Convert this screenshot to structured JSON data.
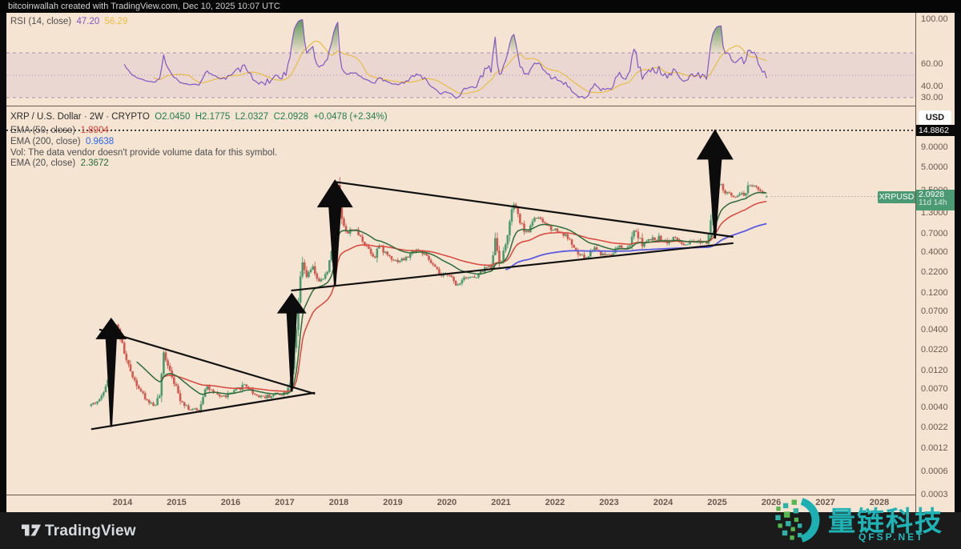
{
  "header": {
    "title": "bitcoinwallah created with TradingView.com, Dec 10, 2025 10:07 UTC"
  },
  "rsi": {
    "label": "RSI (14, close)",
    "value": "47.20",
    "ma_value": "56.29"
  },
  "legend": {
    "symbol_row": "XRP / U.S. Dollar · 2W · CRYPTO",
    "o": "O2.0450",
    "h": "H2.1775",
    "l": "L2.0327",
    "c": "C2.0928",
    "change": "+0.0478 (+2.34%)",
    "ema50_label": "EMA (50, close)",
    "ema50_value": "1.8904",
    "ema200_label": "EMA (200, close)",
    "ema200_value": "0.9638",
    "vol_note": "Vol: The data vendor doesn't provide volume data for this symbol.",
    "ema20_label": "EMA (20, close)",
    "ema20_value": "2.3672"
  },
  "axis": {
    "currency": "USD",
    "level_badge": "14.8862",
    "price_badge": "2.0928",
    "countdown": "11d 14h",
    "symbol_badge": "XRPUSD"
  },
  "footer": {
    "brand": "TradingView"
  },
  "watermark": {
    "name": "量链科技",
    "site": "QFSP.NET"
  },
  "chart_data": {
    "type": "candlestick",
    "title": "XRP / U.S. Dollar",
    "timeframe": "2W",
    "exchange": "CRYPTO",
    "log_scale": true,
    "seed": 42,
    "time_range": [
      2013.42,
      2025.94
    ],
    "last_ohlc": {
      "o": 2.045,
      "h": 2.1775,
      "l": 2.0327,
      "c": 2.0928,
      "change": 0.0478,
      "change_pct": 2.34
    },
    "indicators": {
      "rsi": {
        "period": 14,
        "value": 47.2,
        "ma_value": 56.29,
        "overbought": 70,
        "mid": 50,
        "oversold": 30,
        "line_color": "#7e57c2",
        "ma_color": "#e8bc45"
      },
      "ema20": {
        "period": 20,
        "value": 2.3672,
        "color": "#2e6b39"
      },
      "ema50": {
        "period": 50,
        "value": 1.8904,
        "color": "#d8453b"
      },
      "ema200": {
        "period": 200,
        "value": 0.9638,
        "color": "#5a5ae0"
      }
    },
    "horizontal_level": {
      "price": 14.8862,
      "style": "dotted"
    },
    "last_price": 2.0928,
    "candle_colors": {
      "up": "#4c9a6e",
      "down": "#cf5a50"
    },
    "price_anchors": [
      [
        2013.42,
        0.0042
      ],
      [
        2013.62,
        0.005
      ],
      [
        2013.79,
        0.0105
      ],
      [
        2013.9,
        0.055
      ],
      [
        2014.0,
        0.032
      ],
      [
        2014.12,
        0.015
      ],
      [
        2014.27,
        0.0088
      ],
      [
        2014.45,
        0.0052
      ],
      [
        2014.62,
        0.0042
      ],
      [
        2014.73,
        0.0058
      ],
      [
        2014.8,
        0.02
      ],
      [
        2014.92,
        0.012
      ],
      [
        2015.1,
        0.0052
      ],
      [
        2015.28,
        0.0038
      ],
      [
        2015.45,
        0.0036
      ],
      [
        2015.58,
        0.0078
      ],
      [
        2015.72,
        0.006
      ],
      [
        2015.9,
        0.0055
      ],
      [
        2016.1,
        0.0063
      ],
      [
        2016.3,
        0.008
      ],
      [
        2016.5,
        0.0058
      ],
      [
        2016.7,
        0.0055
      ],
      [
        2016.9,
        0.006
      ],
      [
        2017.05,
        0.0062
      ],
      [
        2017.15,
        0.009
      ],
      [
        2017.25,
        0.036
      ],
      [
        2017.35,
        0.3
      ],
      [
        2017.45,
        0.19
      ],
      [
        2017.55,
        0.26
      ],
      [
        2017.68,
        0.16
      ],
      [
        2017.82,
        0.21
      ],
      [
        2017.93,
        0.55
      ],
      [
        2018.02,
        2.9
      ],
      [
        2018.1,
        1.05
      ],
      [
        2018.2,
        0.68
      ],
      [
        2018.3,
        0.85
      ],
      [
        2018.44,
        0.62
      ],
      [
        2018.58,
        0.46
      ],
      [
        2018.7,
        0.34
      ],
      [
        2018.77,
        0.5
      ],
      [
        2018.92,
        0.38
      ],
      [
        2019.1,
        0.31
      ],
      [
        2019.28,
        0.33
      ],
      [
        2019.46,
        0.44
      ],
      [
        2019.6,
        0.39
      ],
      [
        2019.78,
        0.27
      ],
      [
        2019.95,
        0.19
      ],
      [
        2020.08,
        0.22
      ],
      [
        2020.2,
        0.145
      ],
      [
        2020.38,
        0.2
      ],
      [
        2020.58,
        0.185
      ],
      [
        2020.74,
        0.25
      ],
      [
        2020.86,
        0.26
      ],
      [
        2020.93,
        0.6
      ],
      [
        2021.02,
        0.28
      ],
      [
        2021.12,
        0.48
      ],
      [
        2021.27,
        1.75
      ],
      [
        2021.4,
        0.95
      ],
      [
        2021.52,
        0.68
      ],
      [
        2021.65,
        1.15
      ],
      [
        2021.8,
        1.0
      ],
      [
        2021.95,
        0.83
      ],
      [
        2022.1,
        0.76
      ],
      [
        2022.28,
        0.62
      ],
      [
        2022.45,
        0.38
      ],
      [
        2022.62,
        0.33
      ],
      [
        2022.76,
        0.47
      ],
      [
        2022.92,
        0.37
      ],
      [
        2023.08,
        0.39
      ],
      [
        2023.22,
        0.47
      ],
      [
        2023.38,
        0.43
      ],
      [
        2023.52,
        0.78
      ],
      [
        2023.66,
        0.5
      ],
      [
        2023.8,
        0.58
      ],
      [
        2023.96,
        0.61
      ],
      [
        2024.12,
        0.55
      ],
      [
        2024.28,
        0.61
      ],
      [
        2024.42,
        0.47
      ],
      [
        2024.58,
        0.53
      ],
      [
        2024.74,
        0.56
      ],
      [
        2024.86,
        0.55
      ],
      [
        2024.94,
        1.4
      ],
      [
        2025.02,
        2.45
      ],
      [
        2025.08,
        3.05
      ],
      [
        2025.18,
        2.35
      ],
      [
        2025.32,
        2.12
      ],
      [
        2025.45,
        2.3
      ],
      [
        2025.55,
        2.2
      ],
      [
        2025.63,
        3.05
      ],
      [
        2025.72,
        2.85
      ],
      [
        2025.82,
        2.35
      ],
      [
        2025.9,
        2.45
      ],
      [
        2025.94,
        2.0928
      ]
    ],
    "trendlines": [
      {
        "from": [
          2013.57,
          0.0405
        ],
        "to": [
          2017.56,
          0.006
        ]
      },
      {
        "from": [
          2013.42,
          0.0021
        ],
        "to": [
          2017.56,
          0.0062
        ]
      },
      {
        "from": [
          2017.92,
          3.23
        ],
        "to": [
          2025.3,
          0.631
        ]
      },
      {
        "from": [
          2017.12,
          0.1285
        ],
        "to": [
          2025.3,
          0.524
        ]
      }
    ],
    "arrows": [
      {
        "t": 2013.79,
        "tip": 0.0575,
        "tail": 0.00225,
        "head_w": 39,
        "head_h": 27,
        "tail_w": 14
      },
      {
        "t": 2017.13,
        "tip": 0.121,
        "tail": 0.0064,
        "head_w": 37,
        "head_h": 26,
        "tail_w": 13
      },
      {
        "t": 2017.93,
        "tip": 3.48,
        "tail": 0.149,
        "head_w": 45,
        "head_h": 35,
        "tail_w": 16
      },
      {
        "t": 2024.96,
        "tip": 15.4,
        "tail": 0.6,
        "head_w": 46,
        "head_h": 38,
        "tail_w": 17
      }
    ],
    "price_ticks": [
      {
        "label": "9.0000",
        "v": 9.0
      },
      {
        "label": "5.0000",
        "v": 5.0
      },
      {
        "label": "2.5000",
        "v": 2.5
      },
      {
        "label": "1.3000",
        "v": 1.3
      },
      {
        "label": "0.7000",
        "v": 0.7
      },
      {
        "label": "0.4000",
        "v": 0.4
      },
      {
        "label": "0.2200",
        "v": 0.22
      },
      {
        "label": "0.1200",
        "v": 0.12
      },
      {
        "label": "0.0700",
        "v": 0.07
      },
      {
        "label": "0.0400",
        "v": 0.04
      },
      {
        "label": "0.0220",
        "v": 0.022
      },
      {
        "label": "0.0120",
        "v": 0.012
      },
      {
        "label": "0.0070",
        "v": 0.007
      },
      {
        "label": "0.0040",
        "v": 0.004
      },
      {
        "label": "0.0022",
        "v": 0.0022
      },
      {
        "label": "0.0012",
        "v": 0.0012
      },
      {
        "label": "0.0006",
        "v": 0.0006
      },
      {
        "label": "0.0003",
        "v": 0.0003
      }
    ],
    "rsi_ticks": [
      {
        "label": "100.00",
        "v": 100
      },
      {
        "label": "60.00",
        "v": 60
      },
      {
        "label": "40.00",
        "v": 40
      },
      {
        "label": "30.00",
        "v": 30
      }
    ],
    "years": [
      {
        "label": "2014",
        "t": 2014
      },
      {
        "label": "2015",
        "t": 2015
      },
      {
        "label": "2016",
        "t": 2016
      },
      {
        "label": "2017",
        "t": 2017
      },
      {
        "label": "2018",
        "t": 2018
      },
      {
        "label": "2019",
        "t": 2019
      },
      {
        "label": "2020",
        "t": 2020
      },
      {
        "label": "2021",
        "t": 2021
      },
      {
        "label": "2022",
        "t": 2022
      },
      {
        "label": "2023",
        "t": 2023
      },
      {
        "label": "2024",
        "t": 2024
      },
      {
        "label": "2025",
        "t": 2025
      },
      {
        "label": "2026",
        "t": 2026
      },
      {
        "label": "2027",
        "t": 2027
      },
      {
        "label": "2028",
        "t": 2028
      }
    ]
  }
}
